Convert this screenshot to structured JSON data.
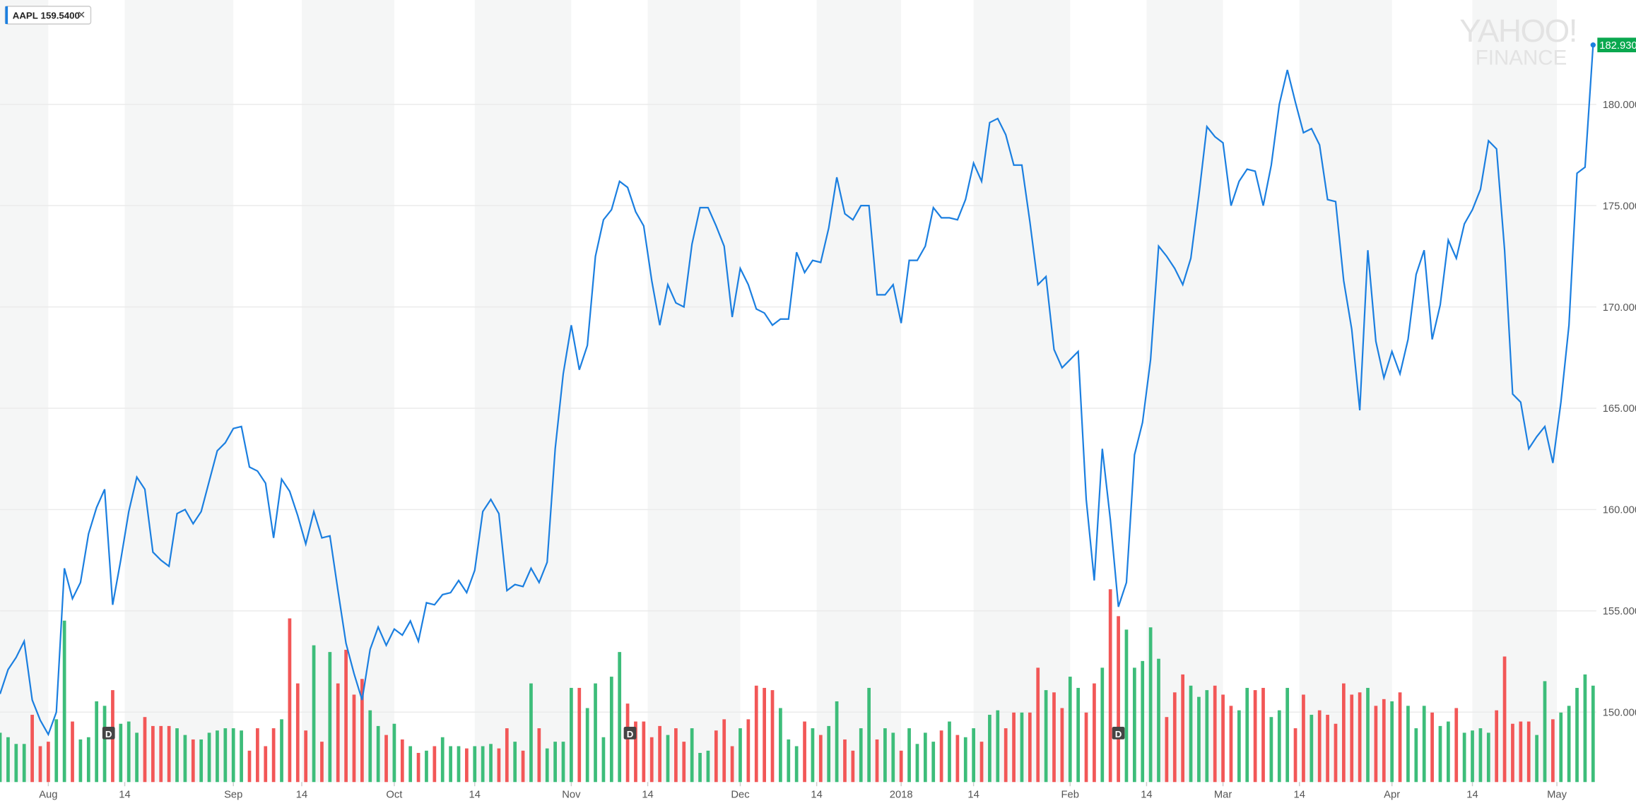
{
  "chart_data": {
    "type": "stock-line",
    "series": [
      {
        "name": "AAPL",
        "color": "#1b7fe0",
        "legend_value": {
          "value": 159.54,
          "label": "159.5400"
        },
        "last_value_label": "182.9300",
        "values": [
          150.9,
          152.1,
          152.7,
          153.5,
          150.6,
          149.6,
          148.9,
          150.0,
          157.1,
          155.6,
          156.4,
          158.8,
          160.1,
          161.0,
          155.3,
          157.5,
          159.9,
          161.6,
          161.0,
          157.9,
          157.5,
          157.2,
          159.8,
          160.0,
          159.3,
          159.9,
          161.4,
          162.9,
          163.3,
          164.0,
          164.1,
          162.1,
          161.9,
          161.3,
          158.6,
          161.5,
          160.9,
          159.7,
          158.3,
          159.9,
          158.6,
          158.7,
          156.0,
          153.4,
          151.9,
          150.6,
          153.1,
          154.2,
          153.3,
          154.1,
          153.8,
          154.5,
          153.5,
          155.4,
          155.3,
          155.8,
          155.9,
          156.5,
          155.9,
          157.0,
          159.9,
          160.5,
          159.8,
          156.0,
          156.3,
          156.2,
          157.1,
          156.4,
          157.4,
          163.0,
          166.7,
          169.1,
          166.9,
          168.1,
          172.5,
          174.3,
          174.8,
          176.2,
          175.9,
          174.7,
          174.0,
          171.3,
          169.1,
          171.1,
          170.2,
          170.0,
          173.1,
          174.9,
          174.9,
          174.0,
          173.0,
          169.5,
          171.9,
          171.1,
          169.9,
          169.7,
          169.1,
          169.4,
          169.4,
          172.7,
          171.7,
          172.3,
          172.2,
          173.9,
          176.4,
          174.6,
          174.3,
          175.0,
          175.0,
          170.6,
          170.6,
          171.1,
          169.2,
          172.3,
          172.3,
          173.0,
          174.9,
          174.4,
          174.4,
          174.3,
          175.3,
          177.1,
          176.2,
          179.1,
          179.3,
          178.5,
          177.0,
          177.0,
          174.2,
          171.1,
          171.5,
          167.9,
          167.0,
          167.4,
          167.8,
          160.5,
          156.5,
          163.0,
          159.5,
          155.2,
          156.4,
          162.7,
          164.3,
          167.4,
          173.0,
          172.5,
          171.9,
          171.1,
          172.4,
          175.5,
          178.9,
          178.4,
          178.1,
          175.0,
          176.2,
          176.8,
          176.7,
          175.0,
          177.0,
          180.0,
          181.7,
          180.1,
          178.6,
          178.8,
          178.0,
          175.3,
          175.2,
          171.3,
          168.9,
          164.9,
          172.8,
          168.3,
          166.5,
          167.8,
          166.7,
          168.4,
          171.6,
          172.8,
          168.4,
          170.1,
          173.3,
          172.4,
          174.1,
          174.8,
          175.8,
          178.2,
          177.8,
          172.8,
          165.7,
          165.3,
          163.0,
          163.6,
          164.1,
          162.3,
          165.3,
          169.1,
          176.6,
          176.9,
          182.93
        ]
      }
    ],
    "volume": {
      "up_color": "#3dbd7a",
      "down_color": "#f25757",
      "values": [
        22,
        20,
        17,
        17,
        30,
        16,
        18,
        28,
        72,
        27,
        19,
        20,
        36,
        34,
        41,
        26,
        27,
        22,
        29,
        25,
        25,
        25,
        24,
        21,
        19,
        19,
        22,
        23,
        24,
        24,
        23,
        14,
        24,
        16,
        24,
        28,
        73,
        44,
        23,
        61,
        18,
        58,
        44,
        59,
        39,
        46,
        32,
        25,
        21,
        26,
        19,
        16,
        13,
        14,
        16,
        20,
        16,
        16,
        15,
        16,
        16,
        17,
        15,
        24,
        18,
        14,
        44,
        24,
        15,
        18,
        18,
        42,
        42,
        33,
        44,
        20,
        47,
        58,
        35,
        27,
        27,
        20,
        25,
        21,
        24,
        18,
        24,
        13,
        14,
        23,
        28,
        16,
        24,
        28,
        43,
        42,
        41,
        33,
        19,
        16,
        27,
        24,
        21,
        25,
        36,
        19,
        14,
        24,
        42,
        19,
        24,
        22,
        14,
        24,
        17,
        22,
        18,
        23,
        27,
        21,
        20,
        24,
        18,
        30,
        32,
        24,
        31,
        31,
        31,
        51,
        41,
        40,
        33,
        47,
        42,
        31,
        44,
        51,
        86,
        74,
        68,
        51,
        54,
        69,
        55,
        29,
        40,
        48,
        43,
        38,
        41,
        43,
        39,
        34,
        32,
        42,
        41,
        42,
        29,
        32,
        42,
        24,
        39,
        30,
        32,
        30,
        26,
        44,
        39,
        40,
        42,
        34,
        37,
        36,
        40,
        34,
        24,
        34,
        31,
        25,
        27,
        33,
        22,
        23,
        24,
        22,
        32,
        56,
        26,
        27,
        27,
        21,
        45,
        28,
        31,
        34,
        42,
        48,
        43
      ]
    },
    "xlim": [
      0,
      198.4
    ],
    "xticks": [
      {
        "value": 6,
        "label": "Aug"
      },
      {
        "value": 15.5,
        "label": "14"
      },
      {
        "value": 29,
        "label": "Sep"
      },
      {
        "value": 37.5,
        "label": "14"
      },
      {
        "value": 49,
        "label": "Oct"
      },
      {
        "value": 59,
        "label": "14"
      },
      {
        "value": 71,
        "label": "Nov"
      },
      {
        "value": 80.5,
        "label": "14"
      },
      {
        "value": 92,
        "label": "Dec"
      },
      {
        "value": 101.5,
        "label": "14"
      },
      {
        "value": 112,
        "label": "2018"
      },
      {
        "value": 121,
        "label": "14"
      },
      {
        "value": 133,
        "label": "Feb"
      },
      {
        "value": 142.5,
        "label": "14"
      },
      {
        "value": 152,
        "label": "Mar"
      },
      {
        "value": 161.5,
        "label": "14"
      },
      {
        "value": 173,
        "label": "Apr"
      },
      {
        "value": 183,
        "label": "14"
      },
      {
        "value": 193.5,
        "label": "May"
      }
    ],
    "ylim": [
      146.55,
      185.15
    ],
    "yticks": [
      {
        "value": 150,
        "label": "150.0000"
      },
      {
        "value": 155,
        "label": "155.0000"
      },
      {
        "value": 160,
        "label": "160.0000"
      },
      {
        "value": 165,
        "label": "165.0000"
      },
      {
        "value": 170,
        "label": "170.0000"
      },
      {
        "value": 175,
        "label": "175.0000"
      },
      {
        "value": 180,
        "label": "180.0000"
      }
    ],
    "grid": true,
    "events": [
      {
        "label": "D",
        "x": 13.5
      },
      {
        "label": "D",
        "x": 78.3
      },
      {
        "label": "D",
        "x": 139
      }
    ],
    "watermark": [
      "YAHOO!",
      "FINANCE"
    ]
  }
}
